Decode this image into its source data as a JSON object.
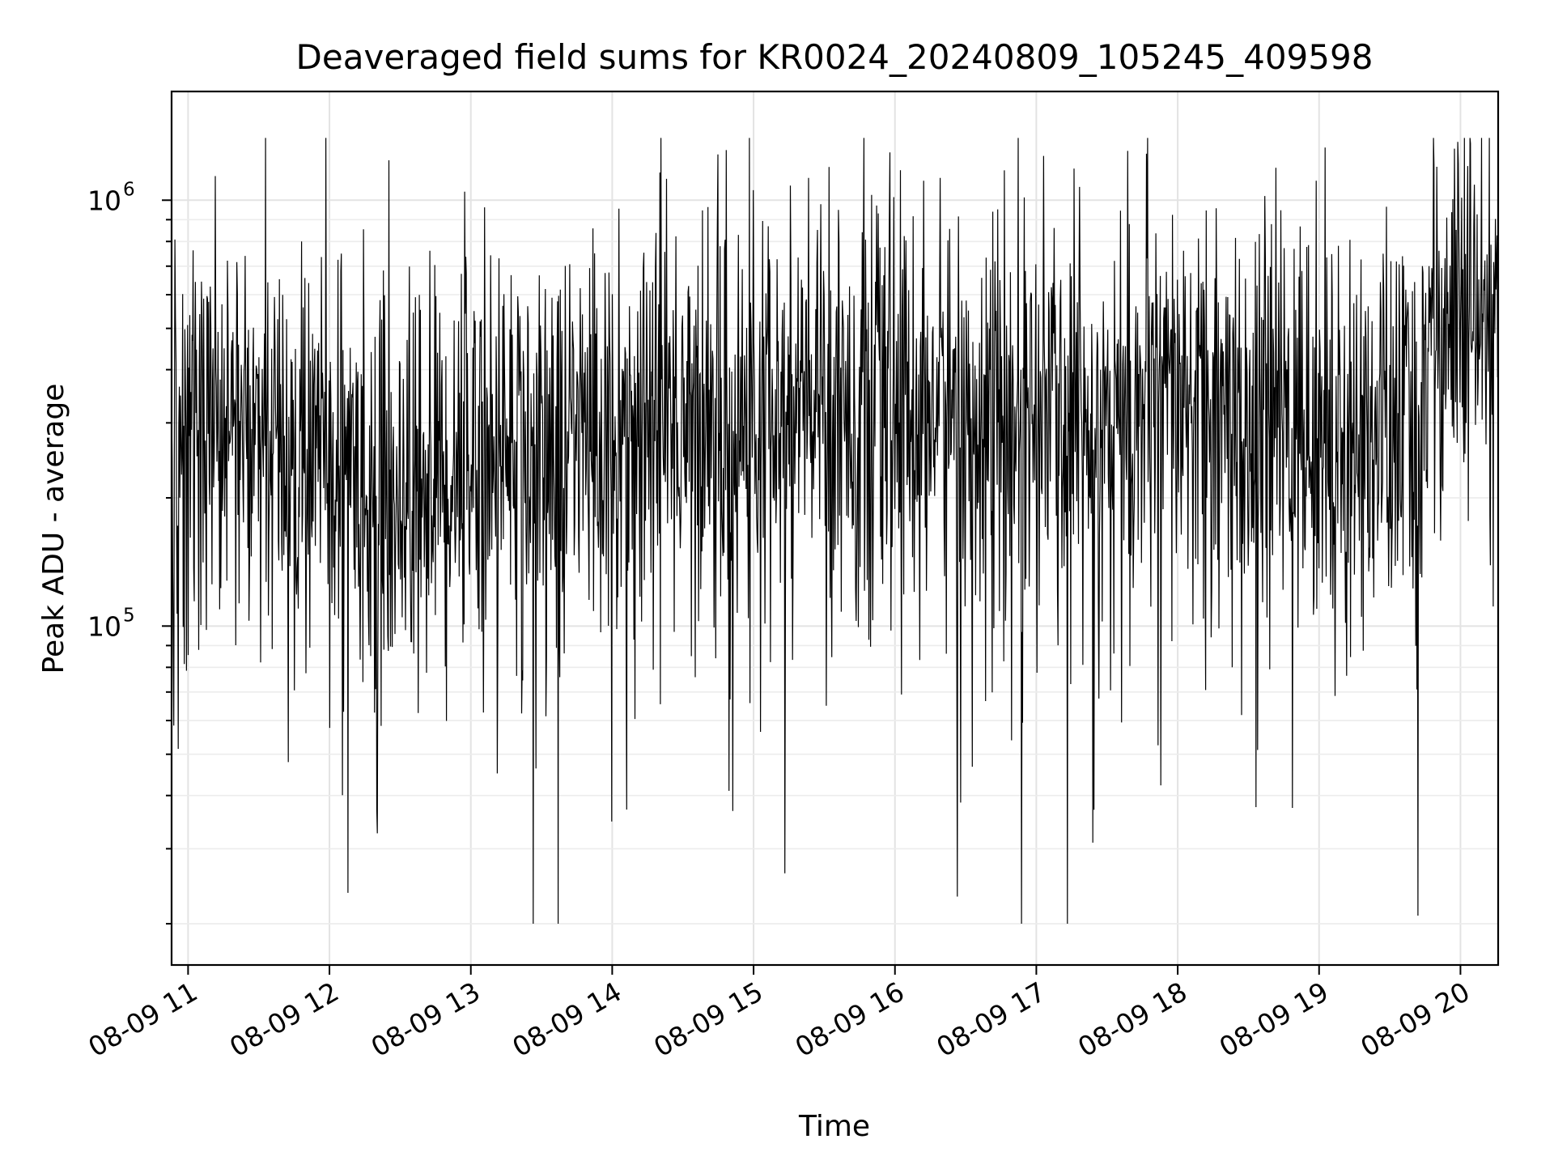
{
  "chart_data": {
    "type": "line",
    "title": "Deaveraged field sums for KR0024_20240809_105245_409598",
    "xlabel": "Time",
    "ylabel": "Peak ADU - average",
    "yscale": "log",
    "grid": true,
    "x_tick_labels": [
      "08-09 11",
      "08-09 12",
      "08-09 13",
      "08-09 14",
      "08-09 15",
      "08-09 16",
      "08-09 17",
      "08-09 18",
      "08-09 19",
      "08-09 20"
    ],
    "y_tick_labels": [
      {
        "value": 100000,
        "base": "10",
        "exp": "5"
      },
      {
        "value": 1000000,
        "base": "10",
        "exp": "6"
      }
    ],
    "xlim": [
      "2024-08-09 10:53",
      "2024-08-09 20:16"
    ],
    "ylim": [
      16000,
      1800000
    ],
    "series": [
      {
        "color": "#000000",
        "t_start": "2024-08-09 10:53",
        "t_end": "2024-08-09 20:16",
        "points": 2400,
        "level_knots_hours": [
          10.88,
          11.2,
          11.5,
          11.8,
          12.1,
          12.4,
          12.7,
          13.0,
          13.3,
          13.6,
          14.0,
          14.4,
          14.8,
          15.2,
          15.6,
          16.0,
          16.4,
          16.8,
          17.2,
          17.6,
          18.0,
          18.4,
          18.8,
          19.1,
          19.4,
          19.7,
          19.8,
          19.9,
          20.27
        ],
        "level_knots_values": [
          260000,
          330000,
          260000,
          250000,
          260000,
          200000,
          220000,
          260000,
          280000,
          260000,
          300000,
          320000,
          300000,
          310000,
          340000,
          320000,
          330000,
          310000,
          320000,
          310000,
          320000,
          320000,
          300000,
          280000,
          280000,
          290000,
          550000,
          500000,
          500000
        ]
      }
    ]
  }
}
